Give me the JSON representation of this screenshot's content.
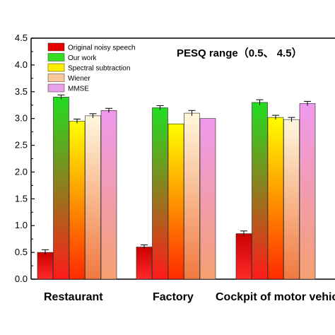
{
  "chart_data": {
    "type": "bar",
    "annotation": "PESQ range（0.5、 4.5）",
    "ylim": [
      0,
      4.5
    ],
    "yticks": [
      "0.0",
      "0.5",
      "1.0",
      "1.5",
      "2.0",
      "2.5",
      "3.0",
      "3.5",
      "4.0",
      "4.5"
    ],
    "categories": [
      "Restaurant",
      "Factory",
      "Cockpit of motor vehicle"
    ],
    "series": [
      {
        "name": "Original noisy speech",
        "values": [
          0.5,
          0.6,
          0.85
        ],
        "errors": [
          0.05,
          0.04,
          0.05
        ],
        "colors": {
          "top": "#cc0000",
          "bottom": "#ff2a2a",
          "legend": "#e60000"
        }
      },
      {
        "name": "Our work",
        "values": [
          3.4,
          3.2,
          3.3
        ],
        "errors": [
          0.04,
          0.04,
          0.05
        ],
        "colors": {
          "top": "#22dd22",
          "bottom": "#ff1a1a",
          "legend": "#33dd22"
        }
      },
      {
        "name": "Spectral subtraction",
        "values": [
          2.95,
          2.9,
          3.02
        ],
        "errors": [
          0.04,
          0.0,
          0.04
        ],
        "colors": {
          "top": "#ffff00",
          "bottom": "#ff2a00",
          "legend": "#ffee00"
        }
      },
      {
        "name": "Wiener",
        "values": [
          3.05,
          3.1,
          2.98
        ],
        "errors": [
          0.04,
          0.05,
          0.04
        ],
        "colors": {
          "top": "#fff8dd",
          "bottom": "#f07840",
          "legend": "#f8c89a"
        }
      },
      {
        "name": "MMSE",
        "values": [
          3.15,
          3.0,
          3.28
        ],
        "errors": [
          0.04,
          0.0,
          0.04
        ],
        "colors": {
          "top": "#ee99ee",
          "bottom": "#f5a070",
          "legend": "#e8a0e8"
        }
      }
    ]
  }
}
